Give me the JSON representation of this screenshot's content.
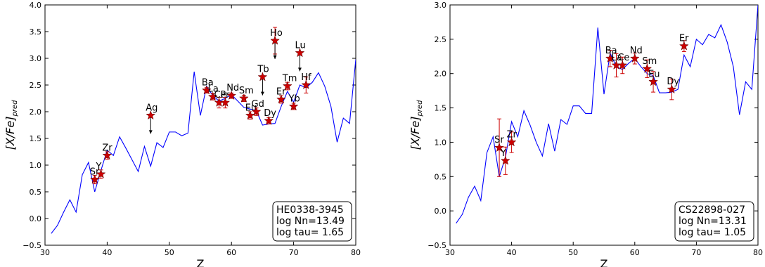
{
  "chart_data": [
    {
      "type": "line",
      "xlabel": "Z",
      "ylabel": "[X/Fe]pred",
      "xlim": [
        30,
        80
      ],
      "ylim": [
        -0.5,
        4.0
      ],
      "xticks": [
        "30",
        "40",
        "50",
        "60",
        "70",
        "80"
      ],
      "yticks": [
        "−0.5",
        "0.0",
        "0.5",
        "1.0",
        "1.5",
        "2.0",
        "2.5",
        "3.0",
        "3.5",
        "4.0"
      ],
      "grid": false,
      "infobox": {
        "position": "bottom-right",
        "lines": [
          "HE0338-3945",
          "log Nn=13.49",
          "log tau= 1.65"
        ]
      },
      "series": [
        {
          "kind": "model-line",
          "color": "#0000ff",
          "x": [
            31,
            32,
            33,
            34,
            35,
            36,
            37,
            38,
            39,
            40,
            41,
            42,
            43,
            44,
            45,
            46,
            47,
            48,
            49,
            50,
            51,
            52,
            53,
            54,
            55,
            56,
            57,
            58,
            59,
            60,
            61,
            62,
            63,
            64,
            65,
            66,
            67,
            68,
            69,
            70,
            71,
            72,
            73,
            74,
            75,
            76,
            77,
            78,
            79,
            80
          ],
          "y": [
            -0.28,
            -0.13,
            0.12,
            0.35,
            0.12,
            0.82,
            1.05,
            0.5,
            0.9,
            1.28,
            1.18,
            1.53,
            1.32,
            1.1,
            0.88,
            1.35,
            0.98,
            1.42,
            1.33,
            1.62,
            1.62,
            1.55,
            1.6,
            2.75,
            1.93,
            2.48,
            2.3,
            2.2,
            2.25,
            2.32,
            2.2,
            2.08,
            2.05,
            2.02,
            1.75,
            1.77,
            1.78,
            2.1,
            2.38,
            2.18,
            2.5,
            2.45,
            2.55,
            2.73,
            2.48,
            2.1,
            1.43,
            1.88,
            1.78,
            2.98
          ]
        },
        {
          "kind": "observed",
          "color": "#cc0000",
          "points": [
            {
              "label": "Sr",
              "x": 38,
              "y": 0.73,
              "err": 0.08,
              "upper_limit": false
            },
            {
              "label": "Y",
              "x": 39,
              "y": 0.83,
              "err": 0.08,
              "upper_limit": false
            },
            {
              "label": "Zr",
              "x": 40,
              "y": 1.18,
              "err": 0.07,
              "upper_limit": false
            },
            {
              "label": "Ag",
              "x": 47,
              "y": 1.93,
              "err": 0,
              "upper_limit": true
            },
            {
              "label": "Ba",
              "x": 56,
              "y": 2.4,
              "err": 0.05,
              "upper_limit": false
            },
            {
              "label": "La",
              "x": 57,
              "y": 2.28,
              "err": 0.06,
              "upper_limit": false
            },
            {
              "label": "Ce",
              "x": 58,
              "y": 2.17,
              "err": 0.1,
              "upper_limit": false
            },
            {
              "label": "Pr",
              "x": 59,
              "y": 2.17,
              "err": 0.1,
              "upper_limit": false
            },
            {
              "label": "Nd",
              "x": 60,
              "y": 2.3,
              "err": 0.05,
              "upper_limit": false
            },
            {
              "label": "Sm",
              "x": 62,
              "y": 2.25,
              "err": 0.06,
              "upper_limit": false
            },
            {
              "label": "Eu",
              "x": 63,
              "y": 1.93,
              "err": 0.07,
              "upper_limit": false
            },
            {
              "label": "Gd",
              "x": 64,
              "y": 2.0,
              "err": 0.07,
              "upper_limit": false
            },
            {
              "label": "Tb",
              "x": 65,
              "y": 2.65,
              "err": 0,
              "upper_limit": true
            },
            {
              "label": "Dy",
              "x": 66,
              "y": 1.83,
              "err": 0.06,
              "upper_limit": false
            },
            {
              "label": "Ho",
              "x": 67,
              "y": 3.33,
              "err": 0.25,
              "upper_limit": true
            },
            {
              "label": "Er",
              "x": 68,
              "y": 2.23,
              "err": 0.07,
              "upper_limit": false
            },
            {
              "label": "Tm",
              "x": 69,
              "y": 2.48,
              "err": 0.07,
              "upper_limit": false
            },
            {
              "label": "Yb",
              "x": 70,
              "y": 2.1,
              "err": 0.06,
              "upper_limit": false
            },
            {
              "label": "Lu",
              "x": 71,
              "y": 3.1,
              "err": 0,
              "upper_limit": true
            },
            {
              "label": "Hf",
              "x": 72,
              "y": 2.5,
              "err": 0.15,
              "upper_limit": false
            }
          ]
        }
      ]
    },
    {
      "type": "line",
      "xlabel": "Z",
      "ylabel": "[X/Fe]pred",
      "xlim": [
        30,
        80
      ],
      "ylim": [
        -0.5,
        3.0
      ],
      "xticks": [
        "30",
        "40",
        "50",
        "60",
        "70",
        "80"
      ],
      "yticks": [
        "−0.5",
        "0.0",
        "0.5",
        "1.0",
        "1.5",
        "2.0",
        "2.5",
        "3.0"
      ],
      "grid": false,
      "infobox": {
        "position": "bottom-right",
        "lines": [
          "CS22898-027",
          "log Nn=13.31",
          "log tau= 1.05"
        ]
      },
      "series": [
        {
          "kind": "model-line",
          "color": "#0000ff",
          "x": [
            31,
            32,
            33,
            34,
            35,
            36,
            37,
            38,
            39,
            40,
            41,
            42,
            43,
            44,
            45,
            46,
            47,
            48,
            49,
            50,
            51,
            52,
            53,
            54,
            55,
            56,
            57,
            58,
            59,
            60,
            61,
            62,
            63,
            64,
            65,
            66,
            67,
            68,
            69,
            70,
            71,
            72,
            73,
            74,
            75,
            76,
            77,
            78,
            79,
            80
          ],
          "y": [
            -0.18,
            -0.05,
            0.2,
            0.36,
            0.15,
            0.85,
            1.08,
            0.5,
            0.78,
            1.3,
            1.08,
            1.46,
            1.25,
            1.0,
            0.8,
            1.27,
            0.87,
            1.33,
            1.26,
            1.53,
            1.53,
            1.42,
            1.42,
            2.67,
            1.7,
            2.3,
            2.1,
            2.06,
            2.15,
            2.22,
            2.1,
            2.0,
            1.97,
            1.72,
            1.72,
            1.73,
            1.77,
            2.27,
            2.1,
            2.5,
            2.42,
            2.57,
            2.52,
            2.71,
            2.46,
            2.1,
            1.4,
            1.88,
            1.77,
            3.0
          ]
        },
        {
          "kind": "observed",
          "color": "#cc0000",
          "points": [
            {
              "label": "Sr",
              "x": 38,
              "y": 0.92,
              "err": 0.42,
              "upper_limit": false
            },
            {
              "label": "Y",
              "x": 39,
              "y": 0.73,
              "err": 0.2,
              "upper_limit": false
            },
            {
              "label": "Zr",
              "x": 40,
              "y": 1.0,
              "err": 0.15,
              "upper_limit": false
            },
            {
              "label": "Ba",
              "x": 56,
              "y": 2.22,
              "err": 0.12,
              "upper_limit": false
            },
            {
              "label": "La",
              "x": 57,
              "y": 2.12,
              "err": 0.17,
              "upper_limit": false
            },
            {
              "label": "Ce",
              "x": 58,
              "y": 2.12,
              "err": 0.12,
              "upper_limit": false
            },
            {
              "label": "Nd",
              "x": 60,
              "y": 2.22,
              "err": 0.08,
              "upper_limit": false
            },
            {
              "label": "Sm",
              "x": 62,
              "y": 2.07,
              "err": 0.13,
              "upper_limit": false
            },
            {
              "label": "Eu",
              "x": 63,
              "y": 1.88,
              "err": 0.15,
              "upper_limit": false
            },
            {
              "label": "Dy",
              "x": 66,
              "y": 1.77,
              "err": 0.15,
              "upper_limit": false
            },
            {
              "label": "Er",
              "x": 68,
              "y": 2.4,
              "err": 0.08,
              "upper_limit": false
            }
          ]
        }
      ]
    }
  ]
}
